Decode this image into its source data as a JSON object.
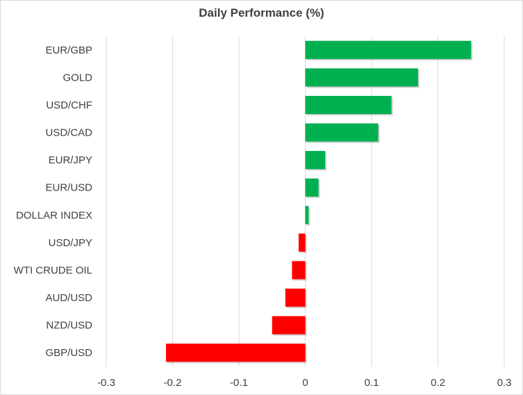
{
  "chart_data": {
    "type": "bar",
    "orientation": "horizontal",
    "title": "Daily Performance (%)",
    "categories": [
      "EUR/GBP",
      "GOLD",
      "USD/CHF",
      "USD/CAD",
      "EUR/JPY",
      "EUR/USD",
      "DOLLAR INDEX",
      "USD/JPY",
      "WTI CRUDE OIL",
      "AUD/USD",
      "NZD/USD",
      "GBP/USD"
    ],
    "values": [
      0.25,
      0.17,
      0.13,
      0.11,
      0.03,
      0.02,
      0.005,
      -0.01,
      -0.02,
      -0.03,
      -0.05,
      -0.21
    ],
    "xlim": [
      -0.3,
      0.3
    ],
    "xticks": [
      -0.3,
      -0.2,
      -0.1,
      0,
      0.1,
      0.2,
      0.3
    ],
    "xtick_labels": [
      "-0.3",
      "-0.2",
      "-0.1",
      "0",
      "0.1",
      "0.2",
      "0.3"
    ],
    "grid": "vertical",
    "legend": "none",
    "colors": {
      "positive": "#00b050",
      "negative": "#ff0000",
      "grid": "#d9d9d9",
      "text": "#404040"
    }
  }
}
